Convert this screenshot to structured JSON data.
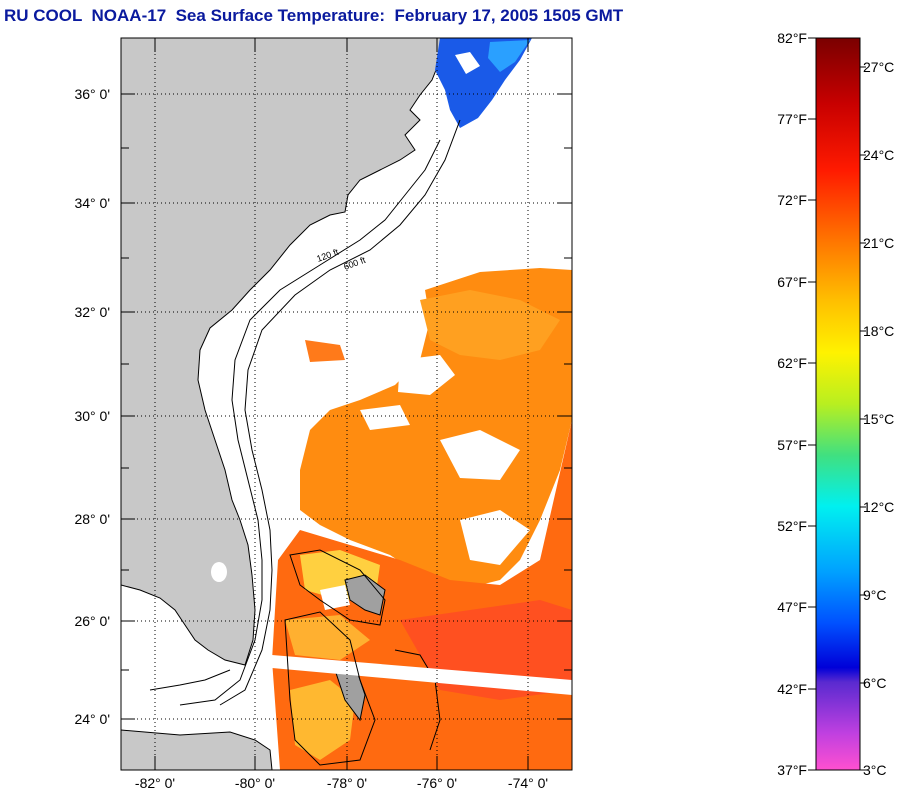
{
  "title": "RU COOL  NOAA-17  Sea Surface Temperature:  February 17, 2005 1505 GMT",
  "colors": {
    "title": "#0a1a9e",
    "land": "#c8c8c8",
    "ocean_cloud": "#ffffff"
  },
  "map": {
    "lat_labels": [
      "36° 0'",
      "34° 0'",
      "32° 0'",
      "30° 0'",
      "28° 0'",
      "26° 0'",
      "24° 0'"
    ],
    "lon_labels": [
      "-82° 0'",
      "-80° 0'",
      "-78° 0'",
      "-76° 0'",
      "-74° 0'"
    ],
    "contour_labels": [
      "120 ft",
      "600 ft"
    ]
  },
  "colorbar": {
    "fahrenheit": [
      "82°F",
      "77°F",
      "72°F",
      "67°F",
      "62°F",
      "57°F",
      "52°F",
      "47°F",
      "42°F",
      "37°F"
    ],
    "celsius": [
      "27°C",
      "24°C",
      "21°C",
      "18°C",
      "15°C",
      "12°C",
      "9°C",
      "6°C",
      "3°C"
    ]
  }
}
